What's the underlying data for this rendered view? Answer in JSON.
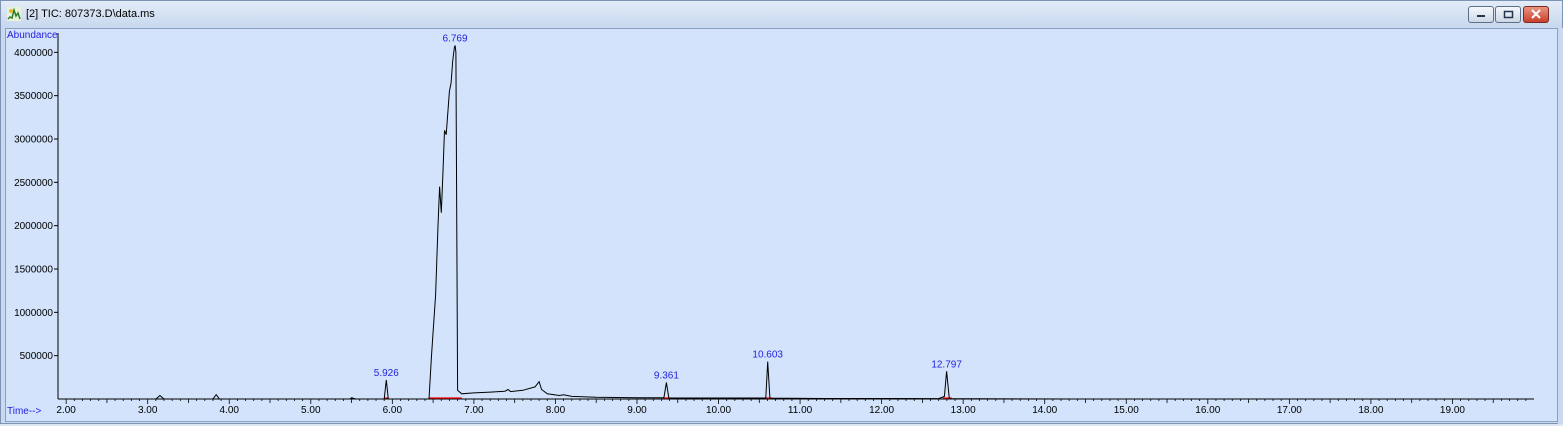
{
  "window": {
    "title": "[2] TIC: 807373.D\\data.ms",
    "controls": [
      "minimize",
      "maximize",
      "close"
    ],
    "icon": "chromatogram-app-icon"
  },
  "chart_data": {
    "type": "line",
    "ylabel": "Abundance",
    "xlabel": "Time-->",
    "xlim": [
      1.9,
      20.0
    ],
    "ylim": [
      0,
      4200000
    ],
    "x_ticks": [
      "2.00",
      "3.00",
      "4.00",
      "5.00",
      "6.00",
      "7.00",
      "8.00",
      "9.00",
      "10.00",
      "11.00",
      "12.00",
      "13.00",
      "14.00",
      "15.00",
      "16.00",
      "17.00",
      "18.00",
      "19.00"
    ],
    "y_ticks": [
      "500000",
      "1000000",
      "1500000",
      "2000000",
      "2500000",
      "3000000",
      "3500000",
      "4000000"
    ],
    "peak_labels": [
      {
        "time": 5.926,
        "label": "5.926",
        "apex": 220000
      },
      {
        "time": 6.769,
        "label": "6.769",
        "apex": 4080000
      },
      {
        "time": 9.361,
        "label": "9.361",
        "apex": 190000
      },
      {
        "time": 10.603,
        "label": "10.603",
        "apex": 430000
      },
      {
        "time": 12.797,
        "label": "12.797",
        "apex": 320000
      }
    ],
    "series": [
      {
        "color": "#000000",
        "points": [
          [
            1.9,
            0
          ],
          [
            3.1,
            0
          ],
          [
            3.15,
            40000
          ],
          [
            3.2,
            0
          ],
          [
            3.8,
            0
          ],
          [
            3.84,
            50000
          ],
          [
            3.88,
            0
          ],
          [
            5.48,
            0
          ],
          [
            5.5,
            15000
          ],
          [
            5.55,
            0
          ],
          [
            5.9,
            0
          ],
          [
            5.926,
            220000
          ],
          [
            5.95,
            0
          ],
          [
            6.45,
            0
          ],
          [
            6.48,
            500000
          ],
          [
            6.53,
            1200000
          ],
          [
            6.56,
            2000000
          ],
          [
            6.58,
            2450000
          ],
          [
            6.6,
            2150000
          ],
          [
            6.62,
            2600000
          ],
          [
            6.64,
            3100000
          ],
          [
            6.66,
            3050000
          ],
          [
            6.68,
            3300000
          ],
          [
            6.7,
            3550000
          ],
          [
            6.72,
            3650000
          ],
          [
            6.74,
            3900000
          ],
          [
            6.76,
            4050000
          ],
          [
            6.769,
            4080000
          ],
          [
            6.78,
            4000000
          ],
          [
            6.8,
            100000
          ],
          [
            6.85,
            60000
          ],
          [
            7.0,
            70000
          ],
          [
            7.2,
            80000
          ],
          [
            7.38,
            90000
          ],
          [
            7.42,
            110000
          ],
          [
            7.45,
            85000
          ],
          [
            7.6,
            100000
          ],
          [
            7.75,
            140000
          ],
          [
            7.8,
            200000
          ],
          [
            7.83,
            110000
          ],
          [
            7.9,
            60000
          ],
          [
            8.05,
            40000
          ],
          [
            8.1,
            50000
          ],
          [
            8.2,
            30000
          ],
          [
            8.5,
            20000
          ],
          [
            9.0,
            15000
          ],
          [
            9.33,
            15000
          ],
          [
            9.361,
            190000
          ],
          [
            9.39,
            12000
          ],
          [
            10.0,
            12000
          ],
          [
            10.58,
            12000
          ],
          [
            10.603,
            430000
          ],
          [
            10.63,
            10000
          ],
          [
            11.3,
            6000
          ],
          [
            12.7,
            5000
          ],
          [
            12.77,
            30000
          ],
          [
            12.797,
            320000
          ],
          [
            12.83,
            5000
          ],
          [
            13.2,
            2000
          ],
          [
            14.4,
            0
          ],
          [
            20.0,
            0
          ]
        ]
      }
    ],
    "baseline_segments": {
      "color": "#ff0000",
      "ranges": [
        [
          5.9,
          5.95
        ],
        [
          6.45,
          6.85
        ],
        [
          9.32,
          9.4
        ],
        [
          10.57,
          10.66
        ],
        [
          12.75,
          12.86
        ]
      ]
    },
    "colors": {
      "plot_bg": "#d2e3fb",
      "trace": "#000000",
      "peak_label": "#1f1fe0",
      "axis_text": "#1f1fe0",
      "baseline": "#ff0000"
    }
  }
}
